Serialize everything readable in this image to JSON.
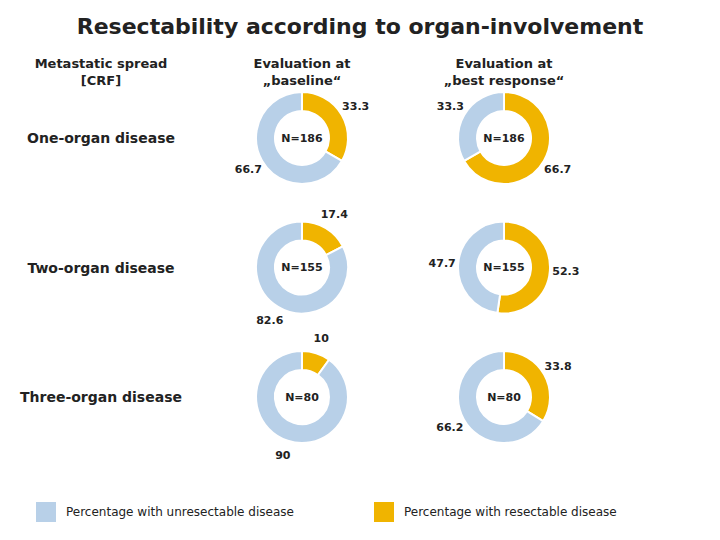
{
  "chart_data": {
    "type": "donut",
    "title": "Resectability according to organ-involvement",
    "row_header": "Metastatic spread\n[CRF]",
    "column_labels": [
      "Evaluation at\n„baseline“",
      "Evaluation at\n„best response“"
    ],
    "row_labels": [
      "One-organ disease",
      "Two-organ disease",
      "Three-organ disease"
    ],
    "categories": [
      "N=186",
      "N=186",
      "N=155",
      "N=155",
      "N=80",
      "N=80"
    ],
    "series": [
      {
        "name": "Percentage with resectable disease",
        "color": "#f0b400",
        "values": [
          33.3,
          66.7,
          17.4,
          52.3,
          10,
          33.8
        ]
      },
      {
        "name": "Percentage with unresectable disease",
        "color": "#b8d0e8",
        "values": [
          66.7,
          33.3,
          82.6,
          47.7,
          90,
          66.2
        ]
      }
    ],
    "data_labels": true,
    "legend": "bottom"
  }
}
